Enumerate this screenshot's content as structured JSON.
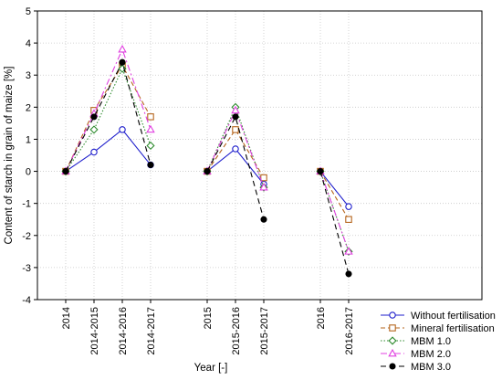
{
  "chart_data": {
    "type": "line",
    "ylabel": "Content of starch in grain of maize [%]",
    "xlabel": "Year [-]",
    "ylim": [
      -4,
      5
    ],
    "yticks": [
      "-4",
      "-3",
      "-2",
      "-1",
      "0",
      "1",
      "2",
      "3",
      "4",
      "5"
    ],
    "grid": true,
    "legend_position": "bottom-right",
    "categories": [
      "2014",
      "2014-2015",
      "2014-2016",
      "2014-2017",
      "",
      "2015",
      "2015-2016",
      "2015-2017",
      "",
      "2016",
      "2016-2017"
    ],
    "groups": [
      [
        0,
        1,
        2,
        3
      ],
      [
        5,
        6,
        7
      ],
      [
        9,
        10
      ]
    ],
    "series": [
      {
        "name": "Without fertilisation",
        "color": "#1f1fcc",
        "marker": "circle-open",
        "line": "solid",
        "values": [
          0,
          0.6,
          1.3,
          0.2,
          null,
          0,
          0.7,
          -0.4,
          null,
          0,
          -1.1
        ]
      },
      {
        "name": "Mineral fertilisation",
        "color": "#b5651d",
        "marker": "square-open",
        "line": "dashed",
        "values": [
          0,
          1.9,
          3.3,
          1.7,
          null,
          0,
          1.3,
          -0.2,
          null,
          0,
          -1.5
        ]
      },
      {
        "name": "MBM 1.0",
        "color": "#2e8b2e",
        "marker": "diamond-open",
        "line": "dotted",
        "values": [
          0,
          1.3,
          3.2,
          0.8,
          null,
          0,
          2.0,
          -0.5,
          null,
          0,
          -2.5
        ]
      },
      {
        "name": "MBM 2.0",
        "color": "#e040e0",
        "marker": "triangle-open",
        "line": "dashdot",
        "values": [
          0,
          1.8,
          3.8,
          1.3,
          null,
          0,
          1.9,
          -0.5,
          null,
          0,
          -2.5
        ]
      },
      {
        "name": "MBM 3.0",
        "color": "#000000",
        "marker": "circle-filled",
        "line": "dashlong",
        "values": [
          0,
          1.7,
          3.4,
          0.2,
          null,
          0,
          1.7,
          -1.5,
          null,
          0,
          -3.2
        ]
      }
    ]
  }
}
